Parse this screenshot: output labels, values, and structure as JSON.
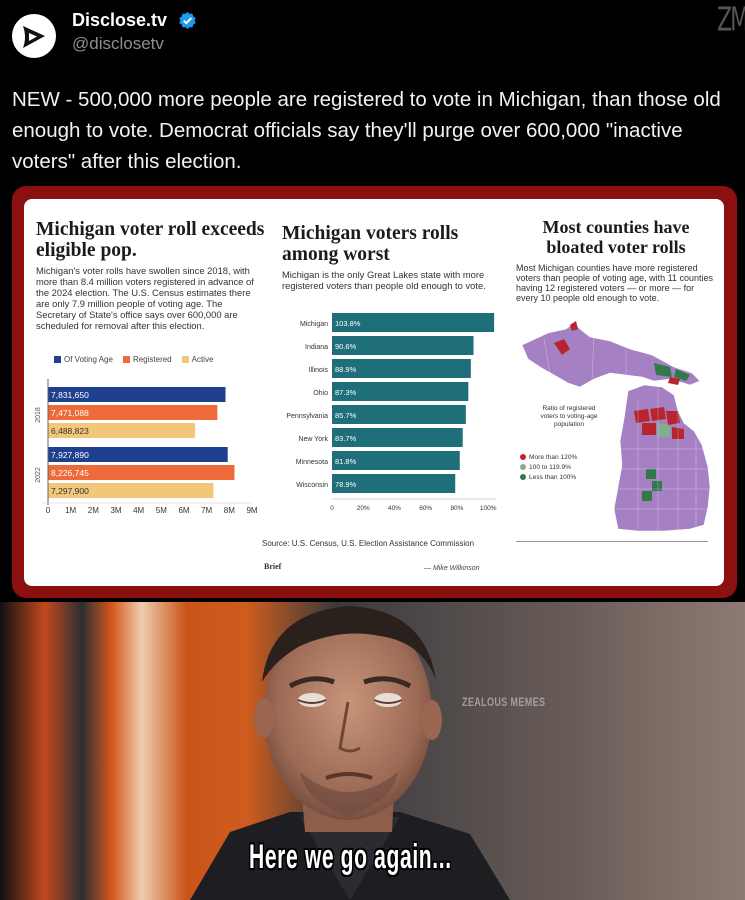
{
  "tweet": {
    "account_name": "Disclose.tv",
    "handle": "@disclosetv",
    "text": "NEW - 500,000 more people are registered to vote in Michigan, than those old enough to vote. Democrat officials say they'll purge over 600,000 \"inactive voters\" after this election.",
    "watermark": "ZM",
    "icons": {
      "avatar": "disclose-logo-icon",
      "verified": "verified-badge-icon"
    },
    "colors": {
      "frame": "#8c1010",
      "verified": "#1d9bf0"
    }
  },
  "infographic": {
    "panel1": {
      "title": "Michigan voter roll exceeds eligible pop.",
      "description": "Michigan's voter rolls have swollen since 2018, with more than 8.4 million voters registered in advance of the 2024 election. The U.S. Census estimates there are only 7.9 million people of voting age. The Secretary of State's office says over 600,000 are scheduled for removal after this election.",
      "legend": [
        "Of Voting Age",
        "Registered",
        "Active"
      ]
    },
    "panel2": {
      "title": "Michigan voters rolls among worst",
      "description": "Michigan is the only Great Lakes state with more registered voters than people old enough to vote.",
      "source": "Source: U.S. Census, U.S. Election Assistance Commission",
      "brand": "Brief",
      "byline": "— Mike Wilkinson"
    },
    "panel3": {
      "title": "Most counties have bloated voter rolls",
      "description": "Most Michigan counties have more registered voters than people of voting age, with 11 counties having 12 registered voters — or more — for every 10 people old enough to vote.",
      "ratio_title": "Ratio of registered voters to voting-age population",
      "legend": [
        "More than 120%",
        "100 to 119.9%",
        "Less than 100%"
      ],
      "legend_colors": [
        "#c0262d",
        "#7fb08a",
        "#2f7a48"
      ]
    }
  },
  "chart_data": [
    {
      "type": "bar",
      "orientation": "horizontal",
      "groups": [
        "2018",
        "2022"
      ],
      "series": [
        {
          "name": "Of Voting Age",
          "color": "#1f3f8f",
          "values": [
            7831650,
            7927890
          ],
          "labels": [
            "7,831,650",
            "7,927,890"
          ]
        },
        {
          "name": "Registered",
          "color": "#ef6a3a",
          "values": [
            7471088,
            8226745
          ],
          "labels": [
            "7,471,088",
            "8,226,745"
          ]
        },
        {
          "name": "Active",
          "color": "#f2c77a",
          "values": [
            6488823,
            7297900
          ],
          "labels": [
            "6,488,823",
            "7,297,900"
          ]
        }
      ],
      "xlim": [
        0,
        9000000
      ],
      "xticks": [
        "0",
        "1M",
        "2M",
        "3M",
        "4M",
        "5M",
        "6M",
        "7M",
        "8M",
        "9M"
      ]
    },
    {
      "type": "bar",
      "orientation": "horizontal",
      "color": "#1f6f7a",
      "categories": [
        "Michigan",
        "Indiana",
        "Illinois",
        "Ohio",
        "Pennsylvania",
        "New York",
        "Minnesota",
        "Wisconsin"
      ],
      "values": [
        103.8,
        90.6,
        88.9,
        87.3,
        85.7,
        83.7,
        81.8,
        78.9
      ],
      "labels": [
        "103.8%",
        "90.6%",
        "88.9%",
        "87.3%",
        "85.7%",
        "83.7%",
        "81.8%",
        "78.9%"
      ],
      "xlim": [
        0,
        105
      ],
      "xticks": [
        "0",
        "20%",
        "40%",
        "60%",
        "80%",
        "100%"
      ]
    }
  ],
  "meme": {
    "watermark": "ZEALOUS MEMES",
    "caption": "Here we go again..."
  }
}
